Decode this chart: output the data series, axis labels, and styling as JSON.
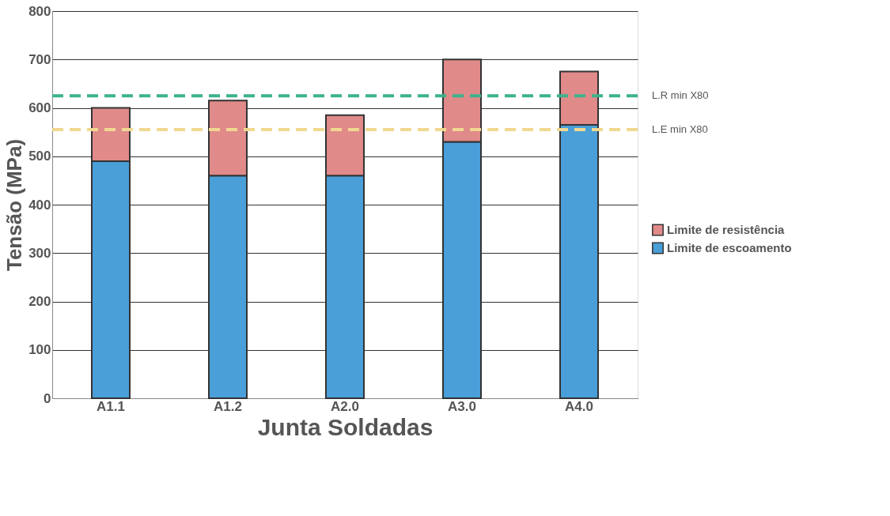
{
  "chart_data": {
    "type": "bar",
    "stacked": true,
    "xlabel": "Junta Soldadas",
    "ylabel": "Tensão  (MPa)",
    "categories": [
      "A1.1",
      "A1.2",
      "A2.0",
      "A3.0",
      "A4.0"
    ],
    "series": [
      {
        "name": "Limite de escoamento",
        "color": "#4a9fd8",
        "values": [
          490,
          460,
          460,
          530,
          565
        ]
      },
      {
        "name": "Limite de resistência",
        "color": "#e08a8a",
        "values": [
          110,
          155,
          125,
          170,
          110
        ]
      }
    ],
    "ylim": [
      0,
      800
    ],
    "yticks": [
      0,
      100,
      200,
      300,
      400,
      500,
      600,
      700,
      800
    ],
    "grid": "y",
    "legend": "right",
    "ref_lines": [
      {
        "axis": "y",
        "value": 625,
        "label": "L.R min X80",
        "color": "#3cb38a",
        "line_style": "dashed"
      },
      {
        "axis": "y",
        "value": 555,
        "label": "L.E min X80",
        "color": "#f0d890",
        "line_style": "dashed"
      }
    ]
  }
}
